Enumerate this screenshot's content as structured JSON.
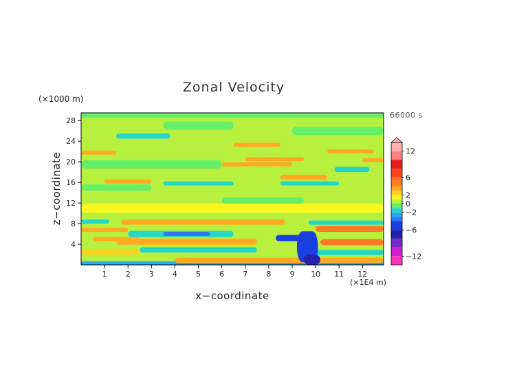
{
  "chart_data": {
    "type": "heatmap",
    "title": "Zonal Velocity",
    "xlabel": "x−coordinate",
    "ylabel": "z−coordinate",
    "x_unit": "(×1E4 m)",
    "y_unit": "(×1000 m)",
    "time_label": "66000 s",
    "xlim": [
      0,
      12.9
    ],
    "ylim": [
      0,
      29.5
    ],
    "x_ticks": [
      1,
      2,
      3,
      4,
      5,
      6,
      7,
      8,
      9,
      10,
      11,
      12
    ],
    "y_ticks": [
      4,
      8,
      12,
      16,
      20,
      24,
      28
    ],
    "background_value": 0.5,
    "colorbar": {
      "range": [
        -14,
        14
      ],
      "ticks": [
        "12",
        "6",
        "2",
        "0",
        "−2",
        "−6",
        "−12"
      ],
      "tick_values": [
        12,
        6,
        2,
        0,
        -2,
        -6,
        -12
      ],
      "levels": [
        {
          "from": -14,
          "to": -12,
          "color": "#ff33bb"
        },
        {
          "from": -12,
          "to": -10,
          "color": "#cc22cc"
        },
        {
          "from": -10,
          "to": -8,
          "color": "#7a2acc"
        },
        {
          "from": -8,
          "to": -6,
          "color": "#2222aa"
        },
        {
          "from": -6,
          "to": -4,
          "color": "#1a40e0"
        },
        {
          "from": -4,
          "to": -3,
          "color": "#2e78f0"
        },
        {
          "from": -3,
          "to": -2,
          "color": "#2aaaf0"
        },
        {
          "from": -2,
          "to": -1,
          "color": "#22d6c8"
        },
        {
          "from": -1,
          "to": 0,
          "color": "#66ee66"
        },
        {
          "from": 0,
          "to": 1,
          "color": "#b8f040"
        },
        {
          "from": 1,
          "to": 2,
          "color": "#f8f820"
        },
        {
          "from": 2,
          "to": 3,
          "color": "#ffd020"
        },
        {
          "from": 3,
          "to": 4,
          "color": "#ffaa22"
        },
        {
          "from": 4,
          "to": 6,
          "color": "#ff7a22"
        },
        {
          "from": 6,
          "to": 8,
          "color": "#ff4420"
        },
        {
          "from": 8,
          "to": 10,
          "color": "#e81c1c"
        },
        {
          "from": 10,
          "to": 12,
          "color": "#ff8080"
        },
        {
          "from": 12,
          "to": 14,
          "color": "#ffb0b0"
        }
      ]
    },
    "features": [
      {
        "x_start": 0,
        "x_end": 12.9,
        "z_center": 0.3,
        "half_thickness": 0.4,
        "value": -2.5
      },
      {
        "x_start": 4,
        "x_end": 12.9,
        "z_center": 0.9,
        "half_thickness": 0.5,
        "value": 3.5
      },
      {
        "x_start": 0,
        "x_end": 2.5,
        "z_center": 2.5,
        "half_thickness": 0.5,
        "value": 2.5
      },
      {
        "x_start": 2.5,
        "x_end": 7.5,
        "z_center": 2.9,
        "half_thickness": 0.5,
        "value": -1.5
      },
      {
        "x_start": 1.5,
        "x_end": 7.5,
        "z_center": 4.5,
        "half_thickness": 0.6,
        "value": 3
      },
      {
        "x_start": 0.5,
        "x_end": 2.5,
        "z_center": 5,
        "half_thickness": 0.4,
        "value": 3.5
      },
      {
        "x_start": 2,
        "x_end": 6.5,
        "z_center": 6,
        "half_thickness": 0.6,
        "value": -2
      },
      {
        "x_start": 3.5,
        "x_end": 5.5,
        "z_center": 6,
        "half_thickness": 0.4,
        "value": -3.5
      },
      {
        "x_start": 0,
        "x_end": 2,
        "z_center": 6.8,
        "half_thickness": 0.4,
        "value": 3.5
      },
      {
        "x_start": 1.7,
        "x_end": 8.7,
        "z_center": 8.3,
        "half_thickness": 0.5,
        "value": 3.5
      },
      {
        "x_start": 0,
        "x_end": 1.2,
        "z_center": 8.4,
        "half_thickness": 0.4,
        "value": -1.5
      },
      {
        "x_start": 10,
        "x_end": 12.9,
        "z_center": 7,
        "half_thickness": 0.6,
        "value": 4
      },
      {
        "x_start": 9.7,
        "x_end": 12.9,
        "z_center": 8.2,
        "half_thickness": 0.4,
        "value": -1.5
      },
      {
        "x_start": 10.2,
        "x_end": 12.9,
        "z_center": 4.4,
        "half_thickness": 0.6,
        "value": 4
      },
      {
        "x_start": 10,
        "x_end": 12.9,
        "z_center": 2.4,
        "half_thickness": 0.5,
        "value": -2
      },
      {
        "x_start": 8.3,
        "x_end": 9.6,
        "z_center": 5.2,
        "half_thickness": 0.6,
        "value": -4.5
      },
      {
        "x_start": 9.2,
        "x_end": 10.1,
        "z_center": 3.5,
        "half_thickness": 3,
        "value": -4.5
      },
      {
        "x_start": 9.5,
        "x_end": 10.2,
        "z_center": 1,
        "half_thickness": 1,
        "value": -7
      },
      {
        "x_start": 0,
        "x_end": 12.9,
        "z_center": 11,
        "half_thickness": 0.9,
        "value": 1.5
      },
      {
        "x_start": 6,
        "x_end": 9.5,
        "z_center": 12.5,
        "half_thickness": 0.6,
        "value": -0.5
      },
      {
        "x_start": 0,
        "x_end": 3,
        "z_center": 15,
        "half_thickness": 0.6,
        "value": -0.5
      },
      {
        "x_start": 1,
        "x_end": 3,
        "z_center": 16.2,
        "half_thickness": 0.4,
        "value": 3.5
      },
      {
        "x_start": 3.5,
        "x_end": 6.5,
        "z_center": 15.8,
        "half_thickness": 0.4,
        "value": -1.5
      },
      {
        "x_start": 8.5,
        "x_end": 11,
        "z_center": 15.8,
        "half_thickness": 0.4,
        "value": -1.5
      },
      {
        "x_start": 8.5,
        "x_end": 10.5,
        "z_center": 17,
        "half_thickness": 0.5,
        "value": 3.5
      },
      {
        "x_start": 10.8,
        "x_end": 12.3,
        "z_center": 18.5,
        "half_thickness": 0.5,
        "value": -1.5
      },
      {
        "x_start": 6,
        "x_end": 9,
        "z_center": 19.5,
        "half_thickness": 0.4,
        "value": 3.5
      },
      {
        "x_start": 7,
        "x_end": 9.5,
        "z_center": 20.5,
        "half_thickness": 0.4,
        "value": 3
      },
      {
        "x_start": 0,
        "x_end": 6,
        "z_center": 19.5,
        "half_thickness": 0.8,
        "value": -0.5
      },
      {
        "x_start": 12,
        "x_end": 12.9,
        "z_center": 20.3,
        "half_thickness": 0.4,
        "value": 3.5
      },
      {
        "x_start": 0,
        "x_end": 1.5,
        "z_center": 21.8,
        "half_thickness": 0.4,
        "value": 3.5
      },
      {
        "x_start": 6.5,
        "x_end": 8.5,
        "z_center": 23.3,
        "half_thickness": 0.4,
        "value": 3.5
      },
      {
        "x_start": 10.5,
        "x_end": 12.5,
        "z_center": 22,
        "half_thickness": 0.4,
        "value": 3
      },
      {
        "x_start": 1.5,
        "x_end": 3.8,
        "z_center": 25,
        "half_thickness": 0.5,
        "value": -1.5
      },
      {
        "x_start": 3.5,
        "x_end": 6.5,
        "z_center": 27,
        "half_thickness": 0.8,
        "value": -0.5
      },
      {
        "x_start": 9,
        "x_end": 12.9,
        "z_center": 26,
        "half_thickness": 0.8,
        "value": -0.5
      },
      {
        "x_start": 0,
        "x_end": 12.9,
        "z_center": 29,
        "half_thickness": 0.5,
        "value": -0.5
      }
    ]
  }
}
